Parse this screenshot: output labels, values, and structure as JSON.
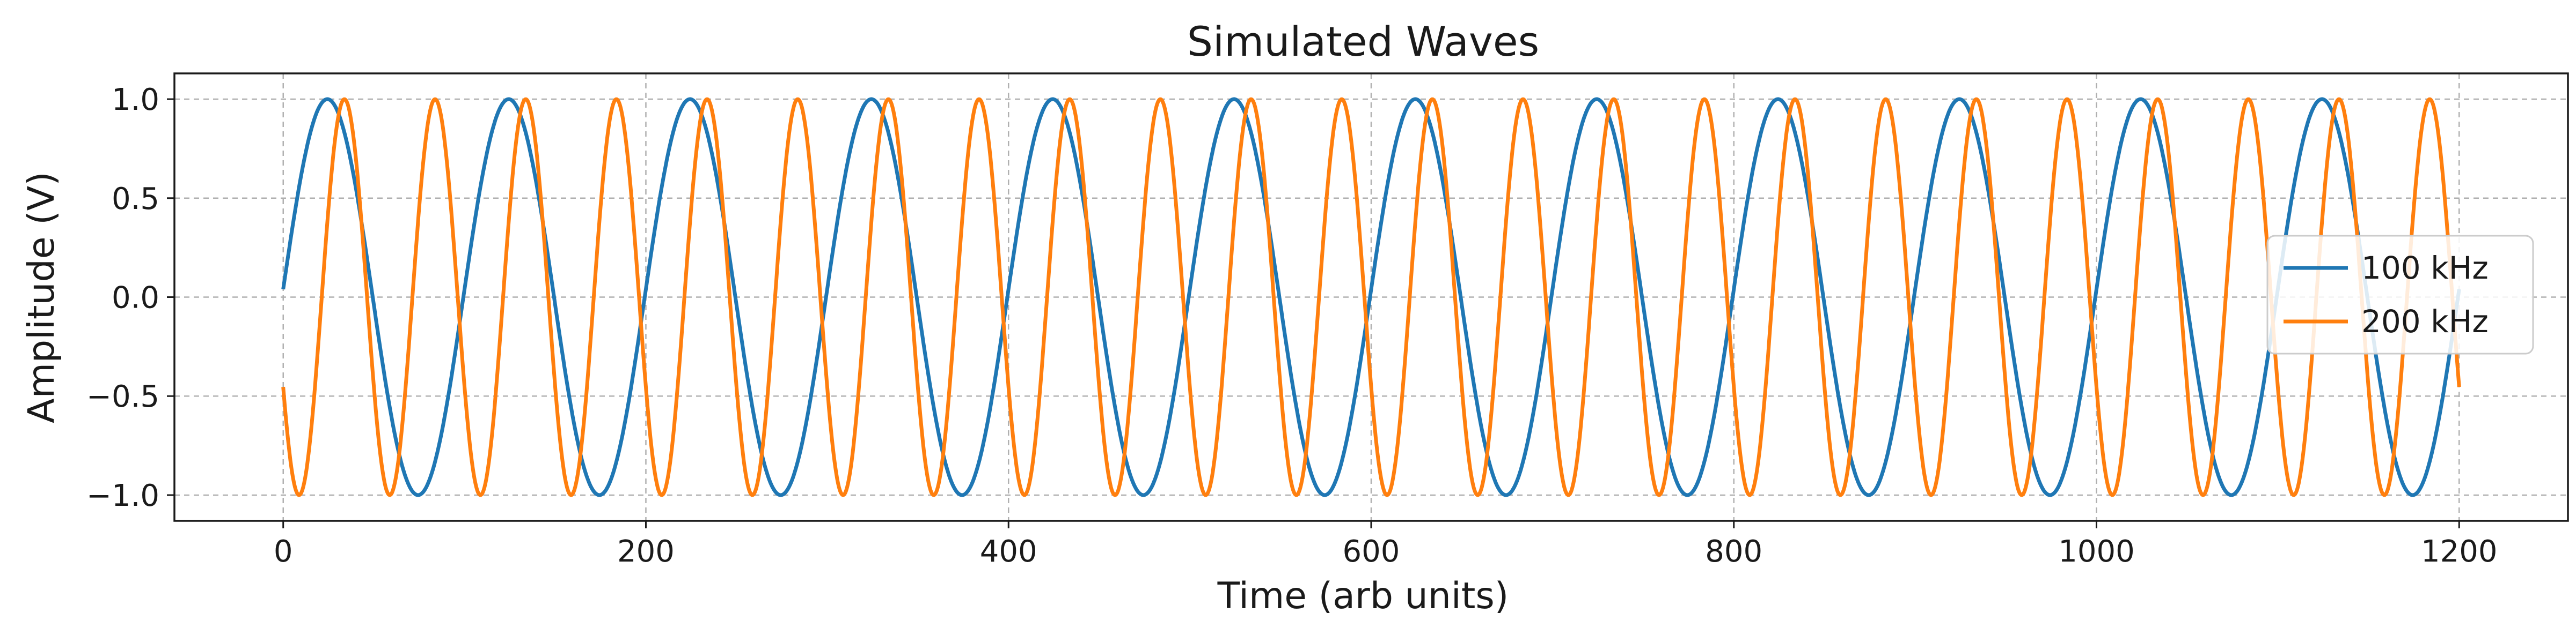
{
  "chart_data": {
    "type": "line",
    "title": "Simulated Waves",
    "xlabel": "Time (arb units)",
    "ylabel": "Amplitude (V)",
    "xlim": [
      -60,
      1260
    ],
    "ylim": [
      -1.13,
      1.13
    ],
    "xticks": [
      0,
      200,
      400,
      600,
      800,
      1000,
      1200
    ],
    "yticks": [
      -1.0,
      -0.5,
      0.0,
      0.5,
      1.0
    ],
    "xtick_labels": [
      "0",
      "200",
      "400",
      "600",
      "800",
      "1000",
      "1200"
    ],
    "ytick_labels": [
      "−1.0",
      "−0.5",
      "0.0",
      "0.5",
      "1.0"
    ],
    "grid": true,
    "legend_position": "center-right",
    "series": [
      {
        "name": "100 kHz",
        "color": "#1f77b4",
        "x_range": [
          0,
          1200
        ],
        "period": 100,
        "phase_deg": 2.3,
        "amplitude": 1.0,
        "waveform": "sine"
      },
      {
        "name": "200 kHz",
        "color": "#ff7f0e",
        "x_range": [
          0,
          1200
        ],
        "period": 50,
        "phase_deg": 207,
        "amplitude": 1.0,
        "waveform": "sine"
      }
    ]
  }
}
